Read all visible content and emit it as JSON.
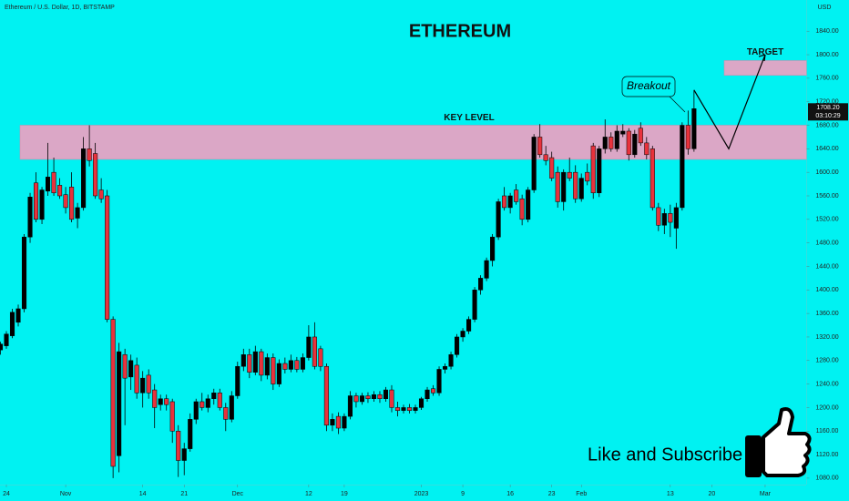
{
  "chart_data": {
    "type": "candlestick",
    "header": "Ethereum / U.S. Dollar, 1D, BITSTAMP",
    "title": "ETHEREUM",
    "currency": "USD",
    "background": "#00f2f2",
    "up_color": "#000000",
    "down_color": "#e8323c",
    "zone_color": "#dba7c6",
    "ylim": [
      1069,
      1893
    ],
    "yticks": [
      {
        "value": 1080,
        "label": "1080.00"
      },
      {
        "value": 1120,
        "label": "1120.00"
      },
      {
        "value": 1160,
        "label": "1160.00"
      },
      {
        "value": 1200,
        "label": "1200.00"
      },
      {
        "value": 1240,
        "label": "1240.00"
      },
      {
        "value": 1280,
        "label": "1280.00"
      },
      {
        "value": 1320,
        "label": "1320.00"
      },
      {
        "value": 1360,
        "label": "1360.00"
      },
      {
        "value": 1400,
        "label": "1400.00"
      },
      {
        "value": 1440,
        "label": "1440.00"
      },
      {
        "value": 1480,
        "label": "1480.00"
      },
      {
        "value": 1520,
        "label": "1520.00"
      },
      {
        "value": 1560,
        "label": "1560.00"
      },
      {
        "value": 1600,
        "label": "1600.00"
      },
      {
        "value": 1640,
        "label": "1640.00"
      },
      {
        "value": 1680,
        "label": "1680.00"
      },
      {
        "value": 1720,
        "label": "1720.00"
      },
      {
        "value": 1760,
        "label": "1760.00"
      },
      {
        "value": 1800,
        "label": "1800.00"
      },
      {
        "value": 1840,
        "label": "1840.00"
      }
    ],
    "xlim": [
      0,
      136
    ],
    "xticks": [
      {
        "value": 1,
        "label": "24"
      },
      {
        "value": 11,
        "label": "Nov"
      },
      {
        "value": 24,
        "label": "14"
      },
      {
        "value": 31,
        "label": "21"
      },
      {
        "value": 40,
        "label": "Dec"
      },
      {
        "value": 52,
        "label": "12"
      },
      {
        "value": 58,
        "label": "19"
      },
      {
        "value": 71,
        "label": "2023"
      },
      {
        "value": 78,
        "label": "9"
      },
      {
        "value": 86,
        "label": "16"
      },
      {
        "value": 93,
        "label": "23"
      },
      {
        "value": 98,
        "label": "Feb"
      },
      {
        "value": 113,
        "label": "13"
      },
      {
        "value": 120,
        "label": "20"
      },
      {
        "value": 129,
        "label": "Mar"
      }
    ],
    "last_price": {
      "value": 1708.2,
      "label": "1708.20"
    },
    "countdown": "03:10:29",
    "key_level": {
      "label": "KEY LEVEL",
      "range": [
        1622,
        1680
      ]
    },
    "target": {
      "label": "TARGET",
      "range": [
        1765,
        1790
      ]
    },
    "annotation": "Breakout",
    "projection": [
      1740,
      1640,
      1800
    ],
    "cta": "Like and Subscribe",
    "candles": [
      {
        "open": 1298,
        "high": 1312,
        "low": 1290,
        "close": 1308
      },
      {
        "open": 1305,
        "high": 1330,
        "low": 1300,
        "close": 1325
      },
      {
        "open": 1322,
        "high": 1368,
        "low": 1318,
        "close": 1362
      },
      {
        "open": 1345,
        "high": 1375,
        "low": 1338,
        "close": 1368
      },
      {
        "open": 1368,
        "high": 1495,
        "low": 1362,
        "close": 1490
      },
      {
        "open": 1490,
        "high": 1565,
        "low": 1480,
        "close": 1558
      },
      {
        "open": 1582,
        "high": 1600,
        "low": 1515,
        "close": 1520
      },
      {
        "open": 1520,
        "high": 1575,
        "low": 1512,
        "close": 1570
      },
      {
        "open": 1568,
        "high": 1650,
        "low": 1560,
        "close": 1592
      },
      {
        "open": 1600,
        "high": 1625,
        "low": 1560,
        "close": 1565
      },
      {
        "open": 1578,
        "high": 1590,
        "low": 1555,
        "close": 1560
      },
      {
        "open": 1562,
        "high": 1575,
        "low": 1530,
        "close": 1540
      },
      {
        "open": 1575,
        "high": 1600,
        "low": 1515,
        "close": 1520
      },
      {
        "open": 1522,
        "high": 1548,
        "low": 1505,
        "close": 1540
      },
      {
        "open": 1540,
        "high": 1660,
        "low": 1535,
        "close": 1640
      },
      {
        "open": 1640,
        "high": 1680,
        "low": 1610,
        "close": 1620
      },
      {
        "open": 1632,
        "high": 1650,
        "low": 1555,
        "close": 1560
      },
      {
        "open": 1570,
        "high": 1590,
        "low": 1548,
        "close": 1555
      },
      {
        "open": 1560,
        "high": 1570,
        "low": 1345,
        "close": 1350
      },
      {
        "open": 1350,
        "high": 1355,
        "low": 1080,
        "close": 1100
      },
      {
        "open": 1118,
        "high": 1310,
        "low": 1090,
        "close": 1295
      },
      {
        "open": 1290,
        "high": 1300,
        "low": 1170,
        "close": 1250
      },
      {
        "open": 1252,
        "high": 1290,
        "low": 1230,
        "close": 1280
      },
      {
        "open": 1272,
        "high": 1285,
        "low": 1215,
        "close": 1225
      },
      {
        "open": 1225,
        "high": 1262,
        "low": 1200,
        "close": 1250
      },
      {
        "open": 1255,
        "high": 1265,
        "low": 1215,
        "close": 1225
      },
      {
        "open": 1230,
        "high": 1240,
        "low": 1165,
        "close": 1200
      },
      {
        "open": 1205,
        "high": 1222,
        "low": 1195,
        "close": 1215
      },
      {
        "open": 1215,
        "high": 1222,
        "low": 1195,
        "close": 1205
      },
      {
        "open": 1210,
        "high": 1215,
        "low": 1140,
        "close": 1160
      },
      {
        "open": 1160,
        "high": 1170,
        "low": 1082,
        "close": 1110
      },
      {
        "open": 1110,
        "high": 1140,
        "low": 1085,
        "close": 1130
      },
      {
        "open": 1130,
        "high": 1190,
        "low": 1125,
        "close": 1180
      },
      {
        "open": 1180,
        "high": 1215,
        "low": 1172,
        "close": 1210
      },
      {
        "open": 1210,
        "high": 1225,
        "low": 1195,
        "close": 1200
      },
      {
        "open": 1200,
        "high": 1222,
        "low": 1192,
        "close": 1215
      },
      {
        "open": 1215,
        "high": 1232,
        "low": 1205,
        "close": 1225
      },
      {
        "open": 1225,
        "high": 1232,
        "low": 1195,
        "close": 1200
      },
      {
        "open": 1200,
        "high": 1208,
        "low": 1160,
        "close": 1180
      },
      {
        "open": 1180,
        "high": 1228,
        "low": 1175,
        "close": 1220
      },
      {
        "open": 1220,
        "high": 1278,
        "low": 1215,
        "close": 1270
      },
      {
        "open": 1270,
        "high": 1300,
        "low": 1262,
        "close": 1290
      },
      {
        "open": 1290,
        "high": 1300,
        "low": 1250,
        "close": 1260
      },
      {
        "open": 1260,
        "high": 1305,
        "low": 1255,
        "close": 1295
      },
      {
        "open": 1295,
        "high": 1300,
        "low": 1245,
        "close": 1255
      },
      {
        "open": 1255,
        "high": 1292,
        "low": 1248,
        "close": 1285
      },
      {
        "open": 1285,
        "high": 1292,
        "low": 1230,
        "close": 1240
      },
      {
        "open": 1240,
        "high": 1282,
        "low": 1235,
        "close": 1275
      },
      {
        "open": 1275,
        "high": 1285,
        "low": 1258,
        "close": 1265
      },
      {
        "open": 1265,
        "high": 1290,
        "low": 1260,
        "close": 1280
      },
      {
        "open": 1280,
        "high": 1286,
        "low": 1260,
        "close": 1265
      },
      {
        "open": 1265,
        "high": 1292,
        "low": 1260,
        "close": 1285
      },
      {
        "open": 1285,
        "high": 1340,
        "low": 1280,
        "close": 1320
      },
      {
        "open": 1320,
        "high": 1345,
        "low": 1265,
        "close": 1270
      },
      {
        "open": 1300,
        "high": 1305,
        "low": 1262,
        "close": 1270
      },
      {
        "open": 1270,
        "high": 1275,
        "low": 1160,
        "close": 1170
      },
      {
        "open": 1170,
        "high": 1190,
        "low": 1160,
        "close": 1180
      },
      {
        "open": 1185,
        "high": 1192,
        "low": 1155,
        "close": 1165
      },
      {
        "open": 1165,
        "high": 1190,
        "low": 1160,
        "close": 1185
      },
      {
        "open": 1185,
        "high": 1228,
        "low": 1180,
        "close": 1220
      },
      {
        "open": 1220,
        "high": 1225,
        "low": 1200,
        "close": 1210
      },
      {
        "open": 1210,
        "high": 1225,
        "low": 1205,
        "close": 1220
      },
      {
        "open": 1220,
        "high": 1226,
        "low": 1208,
        "close": 1215
      },
      {
        "open": 1215,
        "high": 1228,
        "low": 1210,
        "close": 1222
      },
      {
        "open": 1222,
        "high": 1228,
        "low": 1208,
        "close": 1215
      },
      {
        "open": 1215,
        "high": 1235,
        "low": 1210,
        "close": 1230
      },
      {
        "open": 1230,
        "high": 1238,
        "low": 1192,
        "close": 1200
      },
      {
        "open": 1200,
        "high": 1210,
        "low": 1185,
        "close": 1195
      },
      {
        "open": 1195,
        "high": 1205,
        "low": 1190,
        "close": 1200
      },
      {
        "open": 1200,
        "high": 1206,
        "low": 1190,
        "close": 1195
      },
      {
        "open": 1195,
        "high": 1205,
        "low": 1190,
        "close": 1200
      },
      {
        "open": 1200,
        "high": 1218,
        "low": 1196,
        "close": 1215
      },
      {
        "open": 1215,
        "high": 1235,
        "low": 1210,
        "close": 1230
      },
      {
        "open": 1232,
        "high": 1238,
        "low": 1220,
        "close": 1225
      },
      {
        "open": 1225,
        "high": 1270,
        "low": 1220,
        "close": 1265
      },
      {
        "open": 1265,
        "high": 1275,
        "low": 1258,
        "close": 1270
      },
      {
        "open": 1270,
        "high": 1295,
        "low": 1265,
        "close": 1290
      },
      {
        "open": 1290,
        "high": 1325,
        "low": 1285,
        "close": 1320
      },
      {
        "open": 1320,
        "high": 1335,
        "low": 1312,
        "close": 1330
      },
      {
        "open": 1330,
        "high": 1355,
        "low": 1325,
        "close": 1350
      },
      {
        "open": 1350,
        "high": 1405,
        "low": 1345,
        "close": 1400
      },
      {
        "open": 1400,
        "high": 1425,
        "low": 1392,
        "close": 1420
      },
      {
        "open": 1420,
        "high": 1455,
        "low": 1415,
        "close": 1450
      },
      {
        "open": 1450,
        "high": 1495,
        "low": 1440,
        "close": 1490
      },
      {
        "open": 1490,
        "high": 1555,
        "low": 1485,
        "close": 1550
      },
      {
        "open": 1560,
        "high": 1575,
        "low": 1535,
        "close": 1540
      },
      {
        "open": 1540,
        "high": 1565,
        "low": 1530,
        "close": 1560
      },
      {
        "open": 1570,
        "high": 1580,
        "low": 1545,
        "close": 1550
      },
      {
        "open": 1555,
        "high": 1562,
        "low": 1510,
        "close": 1520
      },
      {
        "open": 1520,
        "high": 1575,
        "low": 1515,
        "close": 1570
      },
      {
        "open": 1570,
        "high": 1665,
        "low": 1565,
        "close": 1660
      },
      {
        "open": 1660,
        "high": 1682,
        "low": 1625,
        "close": 1630
      },
      {
        "open": 1630,
        "high": 1645,
        "low": 1612,
        "close": 1620
      },
      {
        "open": 1625,
        "high": 1635,
        "low": 1585,
        "close": 1590
      },
      {
        "open": 1600,
        "high": 1610,
        "low": 1540,
        "close": 1550
      },
      {
        "open": 1550,
        "high": 1605,
        "low": 1535,
        "close": 1600
      },
      {
        "open": 1600,
        "high": 1625,
        "low": 1585,
        "close": 1590
      },
      {
        "open": 1600,
        "high": 1612,
        "low": 1548,
        "close": 1555
      },
      {
        "open": 1555,
        "high": 1598,
        "low": 1550,
        "close": 1590
      },
      {
        "open": 1600,
        "high": 1615,
        "low": 1578,
        "close": 1585
      },
      {
        "open": 1645,
        "high": 1650,
        "low": 1555,
        "close": 1565
      },
      {
        "open": 1565,
        "high": 1645,
        "low": 1558,
        "close": 1640
      },
      {
        "open": 1640,
        "high": 1690,
        "low": 1632,
        "close": 1660
      },
      {
        "open": 1660,
        "high": 1668,
        "low": 1635,
        "close": 1640
      },
      {
        "open": 1640,
        "high": 1680,
        "low": 1635,
        "close": 1670
      },
      {
        "open": 1665,
        "high": 1682,
        "low": 1660,
        "close": 1670
      },
      {
        "open": 1670,
        "high": 1675,
        "low": 1620,
        "close": 1630
      },
      {
        "open": 1630,
        "high": 1672,
        "low": 1625,
        "close": 1665
      },
      {
        "open": 1675,
        "high": 1685,
        "low": 1645,
        "close": 1650
      },
      {
        "open": 1650,
        "high": 1660,
        "low": 1622,
        "close": 1630
      },
      {
        "open": 1640,
        "high": 1645,
        "low": 1535,
        "close": 1540
      },
      {
        "open": 1540,
        "high": 1548,
        "low": 1500,
        "close": 1510
      },
      {
        "open": 1510,
        "high": 1538,
        "low": 1495,
        "close": 1530
      },
      {
        "open": 1530,
        "high": 1545,
        "low": 1490,
        "close": 1515
      },
      {
        "open": 1505,
        "high": 1548,
        "low": 1470,
        "close": 1540
      },
      {
        "open": 1540,
        "high": 1685,
        "low": 1535,
        "close": 1680
      },
      {
        "open": 1680,
        "high": 1705,
        "low": 1630,
        "close": 1640
      },
      {
        "open": 1640,
        "high": 1740,
        "low": 1635,
        "close": 1708.2
      }
    ]
  }
}
